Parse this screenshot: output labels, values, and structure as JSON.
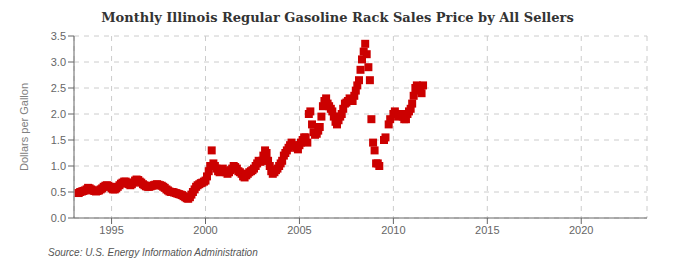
{
  "chart_data": {
    "type": "scatter",
    "title": "Monthly Illinois Regular Gasoline Rack Sales Price by All Sellers",
    "ylabel": "Dollars per Gallon",
    "annotations": [
      "Source: U.S. Energy Information Administration"
    ],
    "color": "#cc0000",
    "marker": "square",
    "grid": true,
    "xlim": [
      1993.0,
      2023.5
    ],
    "ylim": [
      0.0,
      3.5
    ],
    "xticks": [
      1995,
      2000,
      2005,
      2010,
      2015,
      2020
    ],
    "yticks": [
      {
        "value": 0.0,
        "label": "0.0"
      },
      0.5,
      {
        "value": 1.0,
        "label": "1.0"
      },
      1.5,
      {
        "value": 2.0,
        "label": "2.0"
      },
      2.5,
      {
        "value": 3.0,
        "label": "3.0"
      },
      3.5
    ],
    "x": [
      1993.25,
      1993.33,
      1993.42,
      1993.5,
      1993.58,
      1993.67,
      1993.75,
      1993.83,
      1993.92,
      1994.0,
      1994.08,
      1994.17,
      1994.25,
      1994.33,
      1994.42,
      1994.5,
      1994.58,
      1994.67,
      1994.75,
      1994.83,
      1994.92,
      1995.0,
      1995.08,
      1995.17,
      1995.25,
      1995.33,
      1995.42,
      1995.5,
      1995.58,
      1995.67,
      1995.75,
      1995.83,
      1995.92,
      1996.0,
      1996.08,
      1996.17,
      1996.25,
      1996.33,
      1996.42,
      1996.5,
      1996.58,
      1996.67,
      1996.75,
      1996.83,
      1996.92,
      1997.0,
      1997.08,
      1997.17,
      1997.25,
      1997.33,
      1997.42,
      1997.5,
      1997.58,
      1997.67,
      1997.75,
      1997.83,
      1997.92,
      1998.0,
      1998.08,
      1998.17,
      1998.25,
      1998.33,
      1998.42,
      1998.5,
      1998.58,
      1998.67,
      1998.75,
      1998.83,
      1998.92,
      1999.0,
      1999.08,
      1999.17,
      1999.25,
      1999.33,
      1999.42,
      1999.5,
      1999.58,
      1999.67,
      1999.75,
      1999.83,
      1999.92,
      2000.0,
      2000.08,
      2000.17,
      2000.25,
      2000.33,
      2000.42,
      2000.5,
      2000.58,
      2000.67,
      2000.75,
      2000.83,
      2000.92,
      2001.0,
      2001.08,
      2001.17,
      2001.25,
      2001.33,
      2001.42,
      2001.5,
      2001.58,
      2001.67,
      2001.75,
      2001.83,
      2001.92,
      2002.0,
      2002.08,
      2002.17,
      2002.25,
      2002.33,
      2002.42,
      2002.5,
      2002.58,
      2002.67,
      2002.75,
      2002.83,
      2002.92,
      2003.0,
      2003.08,
      2003.17,
      2003.25,
      2003.33,
      2003.42,
      2003.5,
      2003.58,
      2003.67,
      2003.75,
      2003.83,
      2003.92,
      2004.0,
      2004.08,
      2004.17,
      2004.25,
      2004.33,
      2004.42,
      2004.5,
      2004.58,
      2004.67,
      2004.75,
      2004.83,
      2004.92,
      2005.0,
      2005.08,
      2005.17,
      2005.25,
      2005.33,
      2005.42,
      2005.5,
      2005.58,
      2005.67,
      2005.75,
      2005.83,
      2005.92,
      2006.0,
      2006.08,
      2006.17,
      2006.25,
      2006.33,
      2006.42,
      2006.5,
      2006.58,
      2006.67,
      2006.75,
      2006.83,
      2006.92,
      2007.0,
      2007.08,
      2007.17,
      2007.25,
      2007.33,
      2007.42,
      2007.5,
      2007.58,
      2007.67,
      2007.75,
      2007.83,
      2007.92,
      2008.0,
      2008.08,
      2008.17,
      2008.25,
      2008.33,
      2008.42,
      2008.5,
      2008.58,
      2008.67,
      2008.75,
      2008.83,
      2008.92,
      2009.0,
      2009.08,
      2009.17,
      2009.25,
      2009.5,
      2009.58,
      2009.75,
      2009.83,
      2010.0,
      2010.08,
      2010.17,
      2010.25,
      2010.42,
      2010.5,
      2010.58,
      2010.67,
      2010.75,
      2010.83,
      2010.92,
      2011.0,
      2011.08,
      2011.17,
      2011.25,
      2011.33,
      2011.42,
      2011.5,
      2011.58
    ],
    "values": [
      0.48,
      0.5,
      0.51,
      0.52,
      0.53,
      0.55,
      0.58,
      0.57,
      0.55,
      0.53,
      0.52,
      0.51,
      0.52,
      0.53,
      0.55,
      0.57,
      0.6,
      0.62,
      0.63,
      0.62,
      0.6,
      0.57,
      0.55,
      0.55,
      0.57,
      0.6,
      0.63,
      0.66,
      0.68,
      0.7,
      0.7,
      0.68,
      0.65,
      0.63,
      0.65,
      0.68,
      0.72,
      0.74,
      0.73,
      0.7,
      0.68,
      0.65,
      0.63,
      0.61,
      0.6,
      0.6,
      0.61,
      0.62,
      0.63,
      0.64,
      0.65,
      0.64,
      0.63,
      0.62,
      0.6,
      0.58,
      0.55,
      0.53,
      0.51,
      0.5,
      0.5,
      0.49,
      0.48,
      0.47,
      0.46,
      0.45,
      0.44,
      0.42,
      0.4,
      0.38,
      0.37,
      0.4,
      0.45,
      0.5,
      0.55,
      0.6,
      0.63,
      0.65,
      0.67,
      0.68,
      0.7,
      0.72,
      0.8,
      0.9,
      1.0,
      1.3,
      1.05,
      1.0,
      0.95,
      0.9,
      0.88,
      0.9,
      0.95,
      0.9,
      0.88,
      0.85,
      0.88,
      0.92,
      0.95,
      1.0,
      0.98,
      0.95,
      0.9,
      0.88,
      0.85,
      0.8,
      0.78,
      0.82,
      0.85,
      0.88,
      0.9,
      0.92,
      0.95,
      1.0,
      1.05,
      1.1,
      1.08,
      1.1,
      1.2,
      1.3,
      1.25,
      1.1,
      1.0,
      0.9,
      0.85,
      0.88,
      0.92,
      0.95,
      1.0,
      1.05,
      1.1,
      1.2,
      1.25,
      1.3,
      1.35,
      1.4,
      1.45,
      1.4,
      1.38,
      1.35,
      1.32,
      1.4,
      1.45,
      1.5,
      1.55,
      1.55,
      1.45,
      2.0,
      2.05,
      1.8,
      1.65,
      1.6,
      1.62,
      1.68,
      1.75,
      1.95,
      2.15,
      2.25,
      2.3,
      2.2,
      2.15,
      2.1,
      2.05,
      1.95,
      1.85,
      1.8,
      1.88,
      1.95,
      2.0,
      2.1,
      2.2,
      2.22,
      2.25,
      2.3,
      2.25,
      2.25,
      2.35,
      2.45,
      2.55,
      2.65,
      2.85,
      3.05,
      3.2,
      3.35,
      3.15,
      2.9,
      2.65,
      1.9,
      1.45,
      1.3,
      1.05,
      1.05,
      1.0,
      1.5,
      1.55,
      1.8,
      1.9,
      2.0,
      2.05,
      2.0,
      1.95,
      2.0,
      1.95,
      1.9,
      1.9,
      2.0,
      2.05,
      2.1,
      2.2,
      2.35,
      2.5,
      2.55,
      2.5,
      2.45,
      2.4,
      2.55
    ]
  }
}
